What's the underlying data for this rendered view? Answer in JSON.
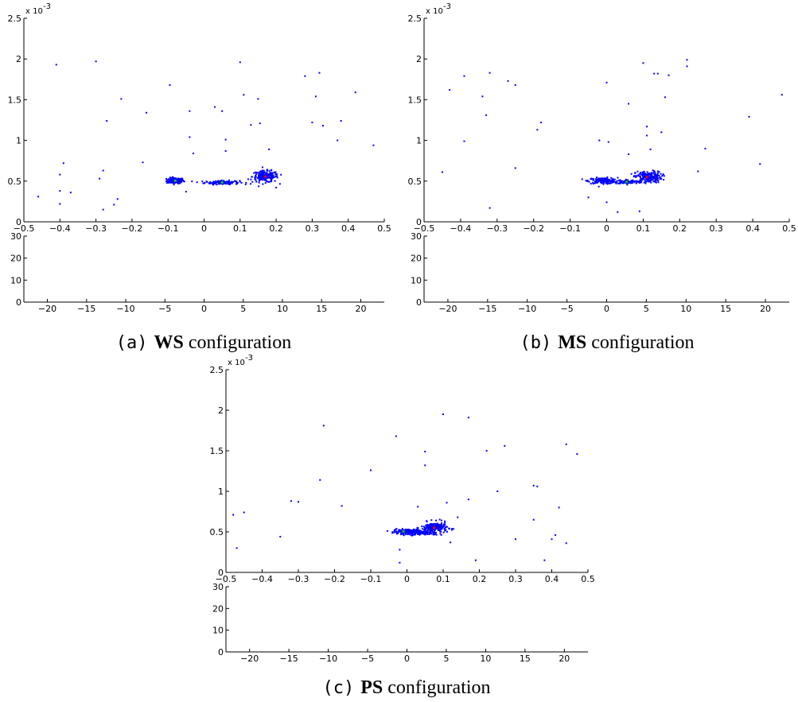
{
  "chart_data": [
    {
      "type": "scatter",
      "caption": {
        "tag": "(a)",
        "bold": "WS",
        "text": "configuration"
      },
      "top": {
        "xlim": [
          -0.5,
          0.5
        ],
        "ylim": [
          0,
          0.0025
        ],
        "exponent_label": "x 10",
        "exponent_power": "-3",
        "xticks": [
          "−0.5",
          "−0.4",
          "−0.3",
          "−0.2",
          "−0.1",
          "0",
          "0.1",
          "0.2",
          "0.3",
          "0.4",
          "0.5"
        ],
        "yticks": [
          "0",
          "0.5",
          "1",
          "1.5",
          "2",
          "2.5"
        ],
        "clusters": [
          {
            "x": -0.08,
            "y": 0.000505,
            "sx": 0.012,
            "sy": 1.8e-05,
            "n": 120
          },
          {
            "x": 0.05,
            "y": 0.000483,
            "sx": 0.024,
            "sy": 1.2e-05,
            "n": 140
          },
          {
            "x": 0.17,
            "y": 0.000555,
            "sx": 0.018,
            "sy": 3.5e-05,
            "n": 200
          }
        ],
        "points": [
          [
            -0.46,
            0.00031
          ],
          [
            -0.41,
            0.00193
          ],
          [
            -0.4,
            0.00058
          ],
          [
            -0.39,
            0.00072
          ],
          [
            -0.4,
            0.00038
          ],
          [
            -0.4,
            0.00022
          ],
          [
            -0.37,
            0.00036
          ],
          [
            -0.3,
            0.00197
          ],
          [
            -0.29,
            0.00053
          ],
          [
            -0.28,
            0.00063
          ],
          [
            -0.28,
            0.00015
          ],
          [
            -0.27,
            0.00124
          ],
          [
            -0.25,
            0.00021
          ],
          [
            -0.24,
            0.00028
          ],
          [
            -0.23,
            0.00151
          ],
          [
            -0.17,
            0.00073
          ],
          [
            -0.16,
            0.00134
          ],
          [
            -0.095,
            0.00168
          ],
          [
            -0.05,
            0.00037
          ],
          [
            -0.04,
            0.00136
          ],
          [
            -0.04,
            0.00104
          ],
          [
            -0.03,
            0.00084
          ],
          [
            0.03,
            0.00141
          ],
          [
            0.05,
            0.00136
          ],
          [
            0.06,
            0.00101
          ],
          [
            0.06,
            0.00087
          ],
          [
            0.1,
            0.00196
          ],
          [
            0.11,
            0.00156
          ],
          [
            0.13,
            0.00119
          ],
          [
            0.15,
            0.00151
          ],
          [
            0.155,
            0.00121
          ],
          [
            0.18,
            0.00089
          ],
          [
            0.2,
            0.00042
          ],
          [
            0.28,
            0.00179
          ],
          [
            0.3,
            0.00122
          ],
          [
            0.31,
            0.00154
          ],
          [
            0.32,
            0.00183
          ],
          [
            0.33,
            0.00118
          ],
          [
            0.37,
            0.001
          ],
          [
            0.38,
            0.00124
          ],
          [
            0.42,
            0.00159
          ],
          [
            0.47,
            0.00094
          ]
        ],
        "highlights": [
          {
            "x": -0.08,
            "y": 0.000505,
            "color": "#00cc00"
          },
          {
            "x": 0.05,
            "y": 0.000483,
            "color": "#00cc00"
          },
          {
            "x": 0.17,
            "y": 0.000555,
            "color": "#ff0000"
          }
        ]
      },
      "bottom": {
        "xlim": [
          -23,
          23
        ],
        "ylim": [
          0,
          30
        ],
        "xticks": [
          "−20",
          "−15",
          "−10",
          "−5",
          "0",
          "5",
          "10",
          "15",
          "20"
        ],
        "yticks": [
          "0",
          "10",
          "20",
          "30"
        ]
      }
    },
    {
      "type": "scatter",
      "caption": {
        "tag": "(b)",
        "bold": "MS",
        "text": "configuration"
      },
      "top": {
        "xlim": [
          -0.5,
          0.5
        ],
        "ylim": [
          0,
          0.0025
        ],
        "exponent_label": "x 10",
        "exponent_power": "-3",
        "xticks": [
          "−0.5",
          "−0.4",
          "−0.3",
          "−0.2",
          "−0.1",
          "0",
          "0.1",
          "0.2",
          "0.3",
          "0.4",
          "0.5"
        ],
        "yticks": [
          "0",
          "0.5",
          "1",
          "1.5",
          "2",
          "2.5"
        ],
        "clusters": [
          {
            "x": -0.01,
            "y": 0.000505,
            "sx": 0.02,
            "sy": 1.8e-05,
            "n": 150
          },
          {
            "x": 0.06,
            "y": 0.00049,
            "sx": 0.02,
            "sy": 1.2e-05,
            "n": 100
          },
          {
            "x": 0.115,
            "y": 0.00055,
            "sx": 0.018,
            "sy": 3.5e-05,
            "n": 200
          }
        ],
        "points": [
          [
            -0.45,
            0.00061
          ],
          [
            -0.43,
            0.00162
          ],
          [
            -0.39,
            0.00179
          ],
          [
            -0.39,
            0.00099
          ],
          [
            -0.34,
            0.00154
          ],
          [
            -0.33,
            0.00131
          ],
          [
            -0.32,
            0.00183
          ],
          [
            -0.32,
            0.00017
          ],
          [
            -0.27,
            0.00173
          ],
          [
            -0.25,
            0.00168
          ],
          [
            -0.25,
            0.00066
          ],
          [
            -0.19,
            0.00113
          ],
          [
            -0.18,
            0.00122
          ],
          [
            -0.05,
            0.0003
          ],
          [
            -0.02,
            0.001
          ],
          [
            0.0,
            0.00171
          ],
          [
            0.005,
            0.00098
          ],
          [
            0.0,
            0.00024
          ],
          [
            0.03,
            0.00012
          ],
          [
            0.06,
            0.00145
          ],
          [
            0.06,
            0.00083
          ],
          [
            0.09,
            0.00013
          ],
          [
            0.1,
            0.00195
          ],
          [
            0.11,
            0.00117
          ],
          [
            0.11,
            0.00106
          ],
          [
            0.12,
            0.00089
          ],
          [
            0.13,
            0.00182
          ],
          [
            0.14,
            0.00182
          ],
          [
            0.15,
            0.0011
          ],
          [
            0.16,
            0.00153
          ],
          [
            0.17,
            0.0018
          ],
          [
            0.22,
            0.00199
          ],
          [
            0.22,
            0.00191
          ],
          [
            0.25,
            0.00062
          ],
          [
            0.27,
            0.0009
          ],
          [
            0.39,
            0.00129
          ],
          [
            0.42,
            0.00071
          ],
          [
            0.48,
            0.00156
          ]
        ],
        "highlights": [
          {
            "x": 0.055,
            "y": 0.00049,
            "color": "#00cc00"
          },
          {
            "x": 0.11,
            "y": 0.00055,
            "color": "#ff0000"
          }
        ]
      },
      "bottom": {
        "xlim": [
          -23,
          23
        ],
        "ylim": [
          0,
          30
        ],
        "xticks": [
          "−20",
          "−15",
          "−10",
          "−5",
          "0",
          "5",
          "10",
          "15",
          "20"
        ],
        "yticks": [
          "0",
          "10",
          "20",
          "30"
        ]
      }
    },
    {
      "type": "scatter",
      "caption": {
        "tag": "(c)",
        "bold": "PS",
        "text": "configuration"
      },
      "top": {
        "xlim": [
          -0.5,
          0.5
        ],
        "ylim": [
          0,
          0.0025
        ],
        "exponent_label": "x 10",
        "exponent_power": "-3",
        "xticks": [
          "−0.5",
          "−0.4",
          "−0.3",
          "−0.2",
          "−0.1",
          "0",
          "0.1",
          "0.2",
          "0.3",
          "0.4",
          "0.5"
        ],
        "yticks": [
          "0",
          "0.5",
          "1",
          "1.5",
          "2",
          "2.5"
        ],
        "clusters": [
          {
            "x": 0.0,
            "y": 0.000505,
            "sx": 0.018,
            "sy": 1.5e-05,
            "n": 140
          },
          {
            "x": 0.04,
            "y": 0.00049,
            "sx": 0.02,
            "sy": 1.2e-05,
            "n": 100
          },
          {
            "x": 0.075,
            "y": 0.00055,
            "sx": 0.018,
            "sy": 3.5e-05,
            "n": 200
          }
        ],
        "points": [
          [
            -0.48,
            0.00071
          ],
          [
            -0.47,
            0.0003
          ],
          [
            -0.45,
            0.00074
          ],
          [
            -0.35,
            0.00044
          ],
          [
            -0.32,
            0.00088
          ],
          [
            -0.3,
            0.00087
          ],
          [
            -0.24,
            0.00114
          ],
          [
            -0.23,
            0.00181
          ],
          [
            -0.18,
            0.00082
          ],
          [
            -0.1,
            0.00126
          ],
          [
            -0.03,
            0.00168
          ],
          [
            -0.02,
            0.00028
          ],
          [
            -0.02,
            0.00012
          ],
          [
            0.03,
            0.00081
          ],
          [
            0.05,
            0.00149
          ],
          [
            0.05,
            0.00132
          ],
          [
            0.1,
            0.00195
          ],
          [
            0.11,
            0.00086
          ],
          [
            0.12,
            0.00037
          ],
          [
            0.14,
            0.00068
          ],
          [
            0.17,
            0.0009
          ],
          [
            0.17,
            0.00191
          ],
          [
            0.19,
            0.00015
          ],
          [
            0.22,
            0.0015
          ],
          [
            0.25,
            0.001
          ],
          [
            0.27,
            0.00156
          ],
          [
            0.3,
            0.00041
          ],
          [
            0.35,
            0.00107
          ],
          [
            0.36,
            0.00106
          ],
          [
            0.38,
            0.00015
          ],
          [
            0.4,
            0.00041
          ],
          [
            0.41,
            0.00046
          ],
          [
            0.42,
            0.0008
          ],
          [
            0.44,
            0.00158
          ],
          [
            0.44,
            0.00036
          ],
          [
            0.47,
            0.00146
          ],
          [
            0.35,
            0.00065
          ]
        ],
        "highlights": [
          {
            "x": -0.01,
            "y": 0.000505,
            "color": "#00cc00"
          },
          {
            "x": 0.075,
            "y": 0.00055,
            "color": "#ff0000"
          }
        ]
      },
      "bottom": {
        "xlim": [
          -23,
          23
        ],
        "ylim": [
          0,
          30
        ],
        "xticks": [
          "−20",
          "−15",
          "−10",
          "−5",
          "0",
          "5",
          "10",
          "15",
          "20"
        ],
        "yticks": [
          "0",
          "10",
          "20",
          "30"
        ]
      }
    }
  ]
}
